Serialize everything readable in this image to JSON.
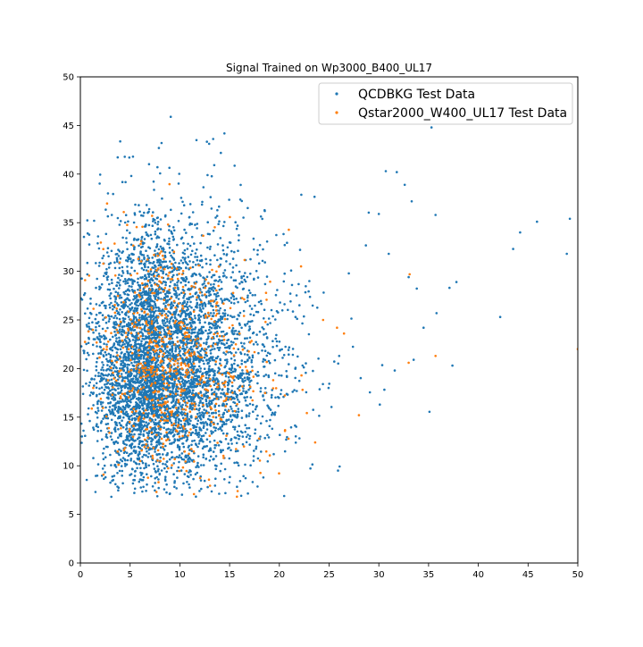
{
  "chart_data": {
    "type": "scatter",
    "title": "Signal Trained on Wp3000_B400_UL17",
    "xlabel": "",
    "ylabel": "",
    "xlim": [
      0,
      50
    ],
    "ylim": [
      0,
      50
    ],
    "x_ticks": [
      "0",
      "5",
      "10",
      "15",
      "20",
      "25",
      "30",
      "35",
      "40",
      "45",
      "50"
    ],
    "y_ticks": [
      "0",
      "5",
      "10",
      "15",
      "20",
      "25",
      "30",
      "35",
      "40",
      "45",
      "50"
    ],
    "grid": false,
    "legend_position": "upper-right",
    "series": [
      {
        "name": "QCDBKG Test Data",
        "color": "#1f77b4",
        "approx_point_count": 60000,
        "core": {
          "x_center": 8,
          "y_center": 20,
          "x_spread": 3.8,
          "y_spread": 5.5
        },
        "outliers": [
          {
            "x": 49.2,
            "y": 35.4
          },
          {
            "x": 48.9,
            "y": 31.8
          },
          {
            "x": 45.9,
            "y": 35.1
          },
          {
            "x": 44.2,
            "y": 34.0
          },
          {
            "x": 43.5,
            "y": 32.3
          },
          {
            "x": 42.2,
            "y": 25.3
          },
          {
            "x": 37.8,
            "y": 28.9
          },
          {
            "x": 37.4,
            "y": 20.3
          },
          {
            "x": 37.1,
            "y": 28.3
          },
          {
            "x": 35.7,
            "y": 35.8
          },
          {
            "x": 35.8,
            "y": 25.7
          },
          {
            "x": 33.3,
            "y": 37.2
          },
          {
            "x": 33.5,
            "y": 20.9
          },
          {
            "x": 33.0,
            "y": 29.4
          },
          {
            "x": 31.6,
            "y": 19.8
          },
          {
            "x": 34.5,
            "y": 24.2
          },
          {
            "x": 35.3,
            "y": 44.8
          },
          {
            "x": 30.7,
            "y": 40.3
          },
          {
            "x": 31.8,
            "y": 40.2
          },
          {
            "x": 32.6,
            "y": 38.9
          },
          {
            "x": 30.0,
            "y": 35.9
          },
          {
            "x": 31.0,
            "y": 31.8
          },
          {
            "x": 30.1,
            "y": 16.3
          },
          {
            "x": 25.9,
            "y": 9.5
          }
        ]
      },
      {
        "name": "Qstar2000_W400_UL17 Test Data",
        "color": "#ff7f0e",
        "approx_point_count": 900,
        "core": {
          "x_center": 8.5,
          "y_center": 20,
          "x_spread": 3.3,
          "y_spread": 5.0
        },
        "outliers": [
          {
            "x": 50.0,
            "y": 22.0
          },
          {
            "x": 35.7,
            "y": 21.3
          },
          {
            "x": 33.0,
            "y": 20.6
          },
          {
            "x": 33.1,
            "y": 29.7
          },
          {
            "x": 28.0,
            "y": 15.2
          },
          {
            "x": 25.8,
            "y": 24.2
          },
          {
            "x": 24.4,
            "y": 25.0
          },
          {
            "x": 23.6,
            "y": 12.4
          },
          {
            "x": 26.5,
            "y": 23.6
          }
        ]
      }
    ]
  }
}
